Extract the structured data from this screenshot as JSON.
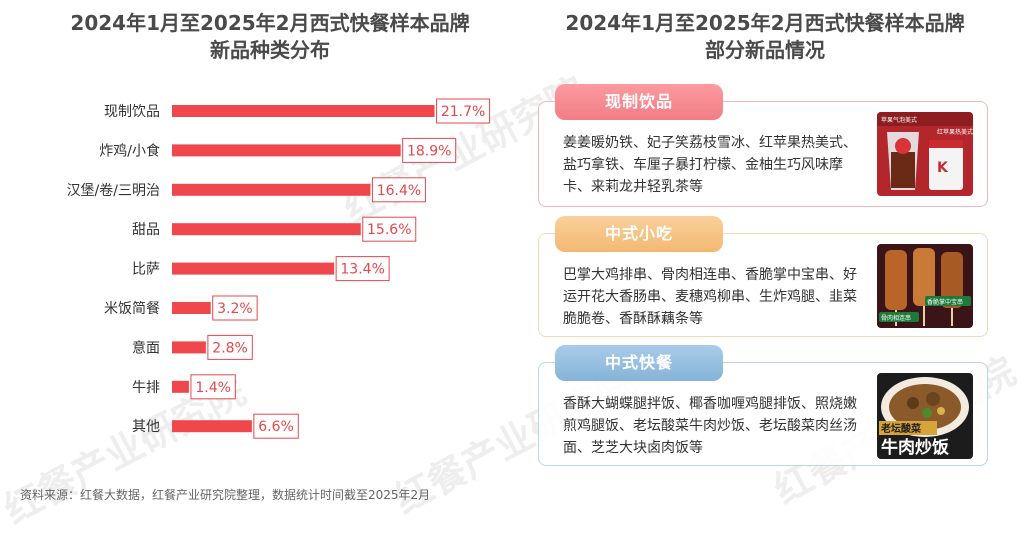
{
  "watermark_text": "红餐产业研究院",
  "left_title": "2024年1月至2025年2月西式快餐样本品牌\n新品种类分布",
  "right_title": "2024年1月至2025年2月西式快餐样本品牌\n部分新品情况",
  "chart_data": {
    "type": "bar",
    "orientation": "horizontal",
    "title": "2024年1月至2025年2月西式快餐样本品牌新品种类分布",
    "categories": [
      "现制饮品",
      "炸鸡/小食",
      "汉堡/卷/三明治",
      "甜品",
      "比萨",
      "米饭简餐",
      "意面",
      "牛排",
      "其他"
    ],
    "values": [
      21.7,
      18.9,
      16.4,
      15.6,
      13.4,
      3.2,
      2.8,
      1.4,
      6.6
    ],
    "value_labels": [
      "21.7%",
      "18.9%",
      "16.4%",
      "15.6%",
      "13.4%",
      "3.2%",
      "2.8%",
      "1.4%",
      "6.6%"
    ],
    "unit": "%",
    "bar_color": "#f0474d",
    "label_color": "#e8474c",
    "xlim": [
      0,
      24
    ],
    "grid": false,
    "legend": "none"
  },
  "cards": [
    {
      "id": "drinks",
      "label": "现制饮品",
      "text": "姜姜暖奶铁、妃子笑荔枝雪冰、红苹果热美式、盐巧拿铁、车厘子暴打柠檬、金柚生巧风味摩卡、来莉龙井轻乳茶等",
      "image_caption_1": "苹果气泡美式",
      "image_caption_2": "红苹果热美式"
    },
    {
      "id": "snacks",
      "label": "中式小吃",
      "text": "巴掌大鸡排串、骨肉相连串、香脆掌中宝串、好运开花大香肠串、麦穗鸡柳串、生炸鸡腿、韭菜脆脆卷、香酥酥藕条等",
      "image_caption_1": "骨肉相连串",
      "image_caption_2": "香脆掌中宝串"
    },
    {
      "id": "meals",
      "label": "中式快餐",
      "text": "香酥大蝴蝶腿拌饭、椰香咖喱鸡腿排饭、照烧嫩煎鸡腿饭、老坛酸菜牛肉炒饭、老坛酸菜肉丝汤面、芝芝大块卤肉饭等",
      "image_caption_1": "老坛酸菜",
      "image_caption_2": "牛肉炒饭"
    }
  ],
  "source": "资料来源：红餐大数据，红餐产业研究院整理，数据统计时间截至2025年2月"
}
